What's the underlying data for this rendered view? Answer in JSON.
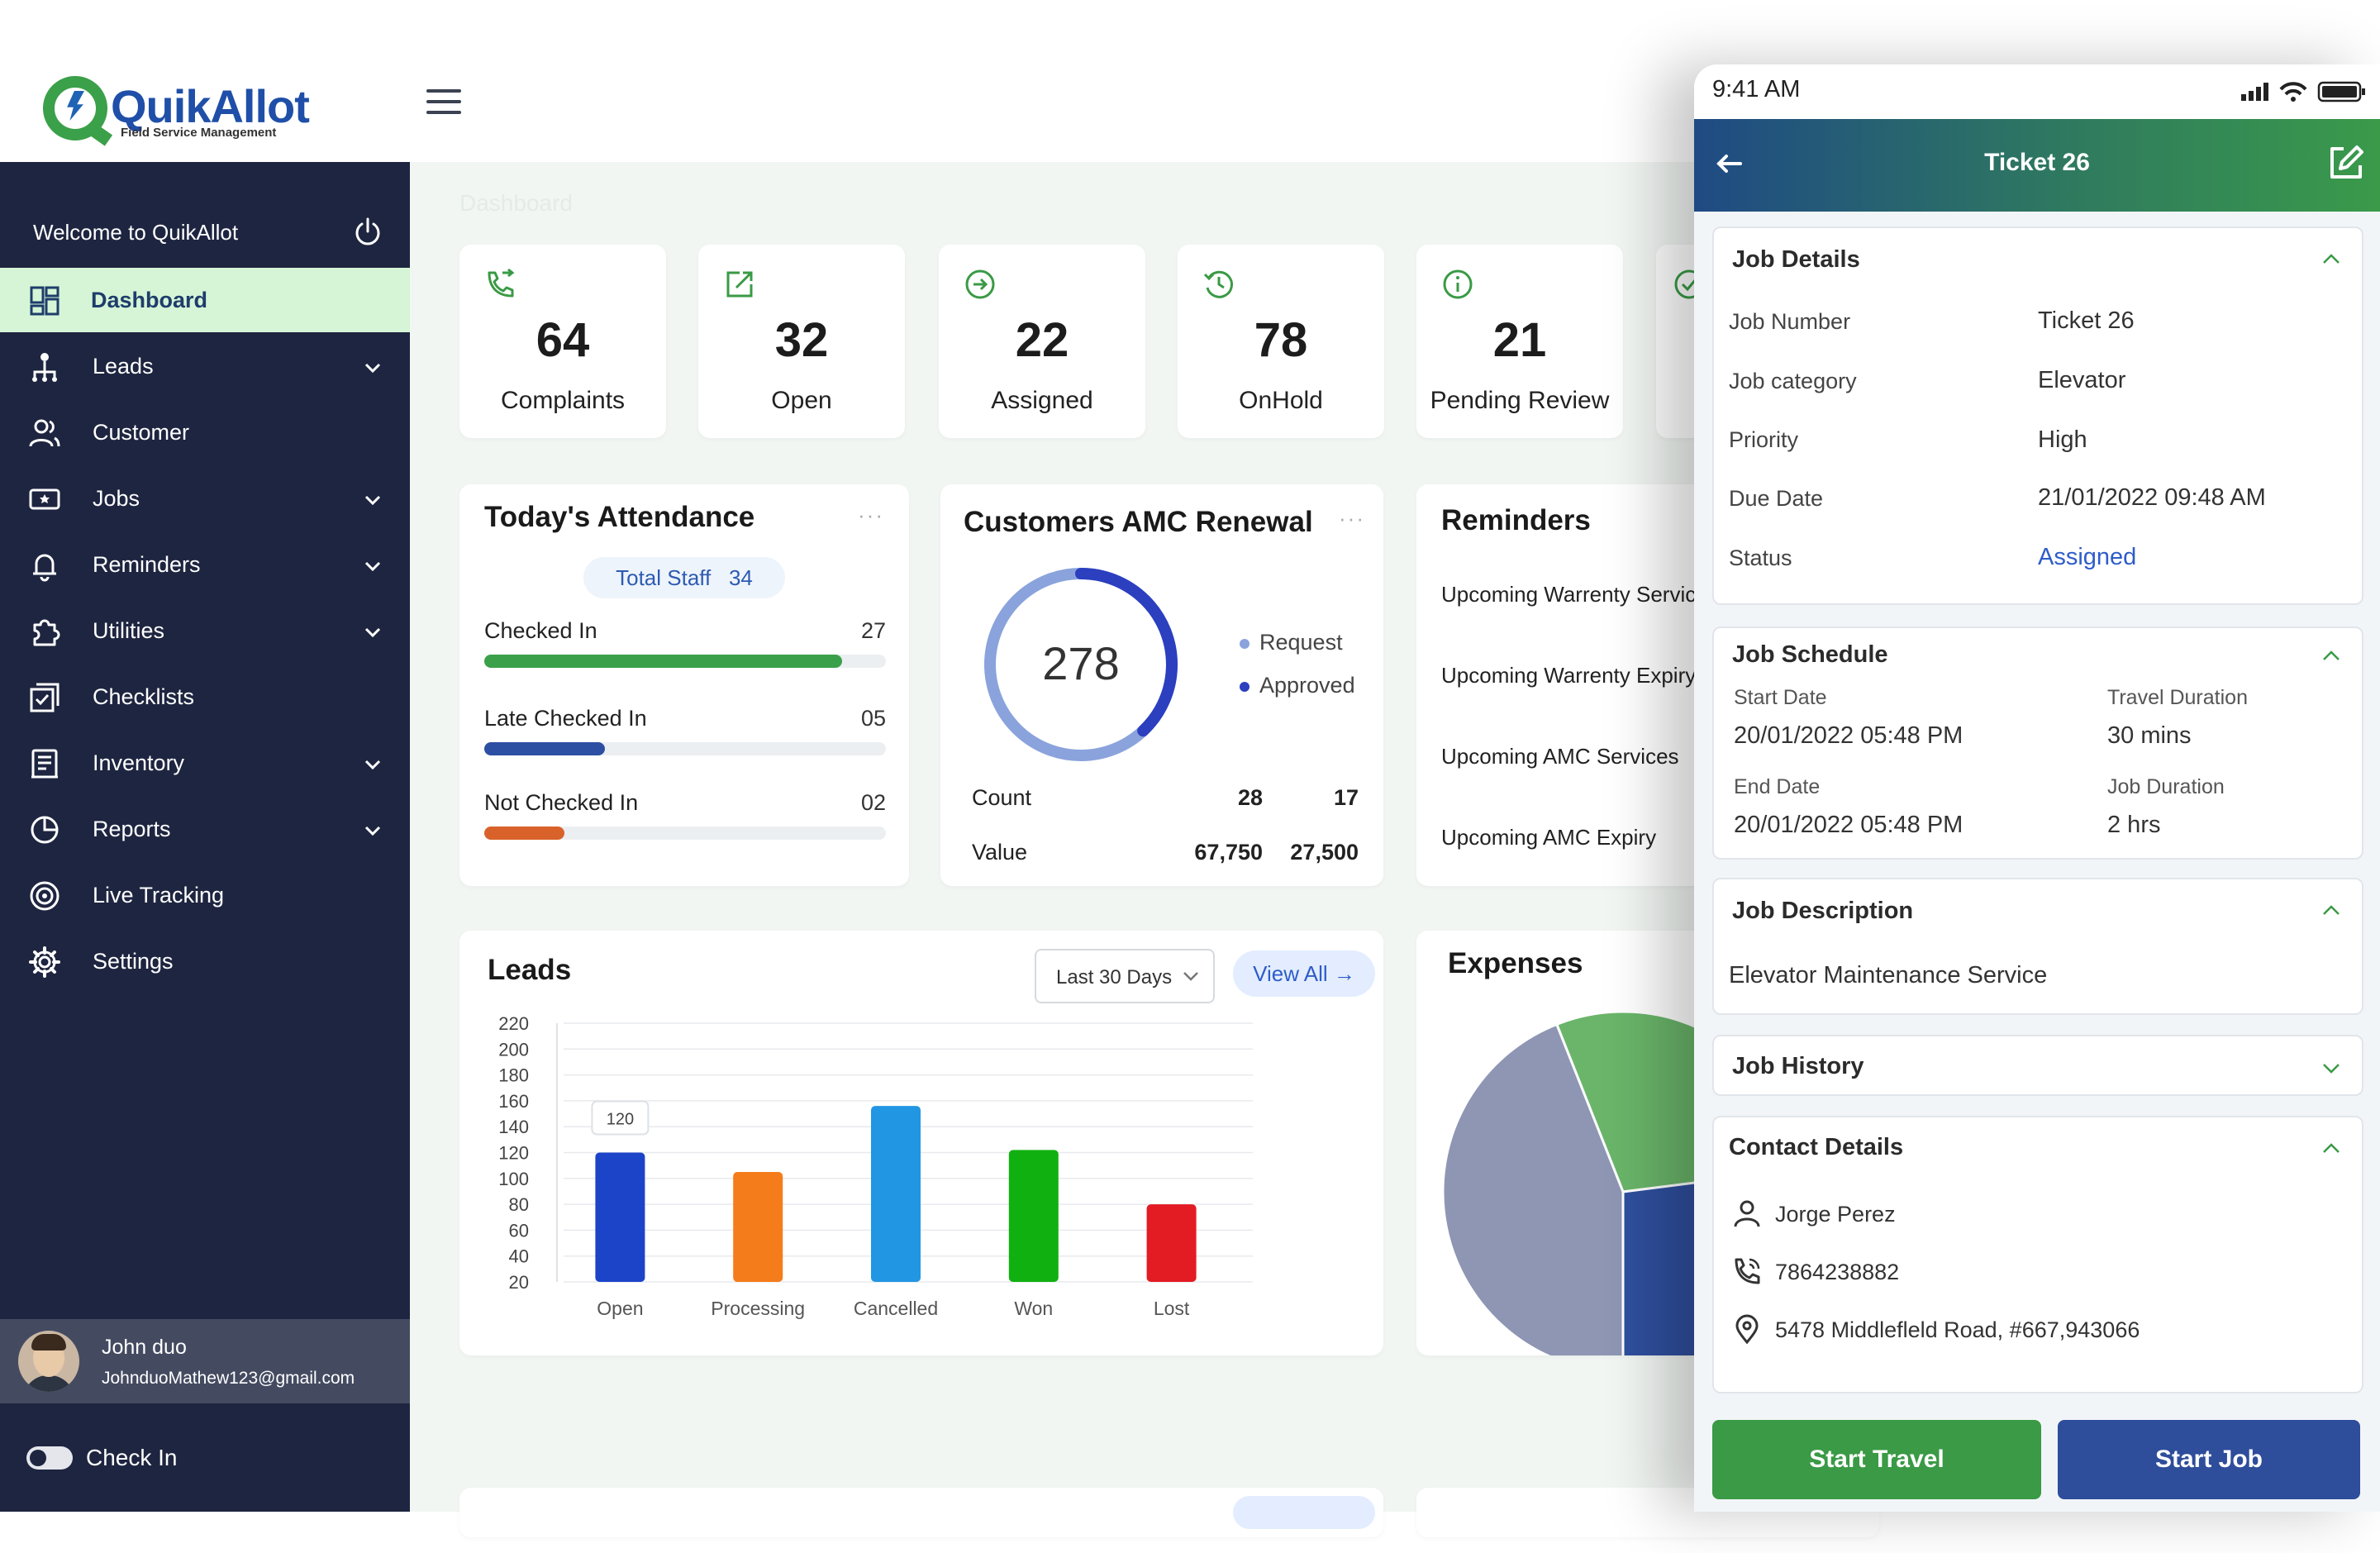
{
  "brand": {
    "name": "QuikAllot",
    "tagline": "Field Service Management"
  },
  "breadcrumb": "Dashboard",
  "sidebar": {
    "welcome": "Welcome to QuikAllot",
    "items": [
      {
        "label": "Dashboard",
        "icon": "dashboard-icon",
        "active": true
      },
      {
        "label": "Leads",
        "icon": "hierarchy-icon",
        "expandable": true
      },
      {
        "label": "Customer",
        "icon": "users-icon"
      },
      {
        "label": "Jobs",
        "icon": "ticket-icon",
        "expandable": true
      },
      {
        "label": "Reminders",
        "icon": "bell-icon",
        "expandable": true
      },
      {
        "label": "Utilities",
        "icon": "puzzle-icon",
        "expandable": true
      },
      {
        "label": "Checklists",
        "icon": "checklist-icon"
      },
      {
        "label": "Inventory",
        "icon": "inventory-icon",
        "expandable": true
      },
      {
        "label": "Reports",
        "icon": "pie-icon",
        "expandable": true
      },
      {
        "label": "Live Tracking",
        "icon": "target-icon"
      },
      {
        "label": "Settings",
        "icon": "gear-icon"
      }
    ],
    "user": {
      "name": "John duo",
      "email": "JohnduoMathew123@gmail.com"
    },
    "check_in_label": "Check In"
  },
  "stats": [
    {
      "value": "64",
      "label": "Complaints",
      "icon": "phone-forward-icon"
    },
    {
      "value": "32",
      "label": "Open",
      "icon": "external-link-icon"
    },
    {
      "value": "22",
      "label": "Assigned",
      "icon": "arrow-circle-icon"
    },
    {
      "value": "78",
      "label": "OnHold",
      "icon": "history-icon"
    },
    {
      "value": "21",
      "label": "Pending Review",
      "icon": "info-icon"
    }
  ],
  "attendance": {
    "title": "Today's Attendance",
    "total_label": "Total Staff",
    "total": "34",
    "rows": [
      {
        "label": "Checked In",
        "value": "27",
        "fraction": 0.89,
        "color": "#3ba04a"
      },
      {
        "label": "Late Checked In",
        "value": "05",
        "fraction": 0.3,
        "color": "#2d4fa3"
      },
      {
        "label": "Not Checked In",
        "value": "02",
        "fraction": 0.2,
        "color": "#d9622b"
      }
    ]
  },
  "amc": {
    "title": "Customers AMC Renewal",
    "total": "278",
    "ring_fraction": 0.38,
    "legend": [
      {
        "label": "Request",
        "color": "#8aa3dc"
      },
      {
        "label": "Approved",
        "color": "#2b3fbf"
      }
    ],
    "count_label": "Count",
    "count_request": "28",
    "count_approved": "17",
    "value_label": "Value",
    "value_request": "67,750",
    "value_approved": "27,500"
  },
  "reminders": {
    "title": "Reminders",
    "items": [
      "Upcoming Warrenty Services",
      "Upcoming Warrenty Expiry",
      "Upcoming AMC Services",
      "Upcoming AMC Expiry"
    ]
  },
  "leads": {
    "title": "Leads",
    "range": "Last 30 Days",
    "view_all": "View All",
    "tooltip": "120"
  },
  "chart_data": {
    "type": "bar",
    "categories": [
      "Open",
      "Processing",
      "Cancelled",
      "Won",
      "Lost"
    ],
    "values": [
      120,
      105,
      156,
      122,
      80
    ],
    "colors": [
      "#1c44c8",
      "#f57c1a",
      "#2196e3",
      "#10b010",
      "#e31b23"
    ],
    "yticks": [
      220,
      200,
      180,
      160,
      140,
      120,
      100,
      80,
      60,
      40,
      20
    ],
    "ylim": [
      20,
      220
    ],
    "grid": true
  },
  "expenses": {
    "title": "Expenses",
    "slices": [
      {
        "fraction": 0.29,
        "color": "#6ab56a"
      },
      {
        "fraction": 0.27,
        "color": "#2f4f9e"
      },
      {
        "fraction": 0.44,
        "color": "#8e96b4"
      }
    ]
  },
  "phone": {
    "time": "9:41 AM",
    "title": "Ticket 26",
    "job_details": {
      "title": "Job Details",
      "rows": [
        {
          "k": "Job Number",
          "v": "Ticket 26"
        },
        {
          "k": "Job category",
          "v": "Elevator"
        },
        {
          "k": "Priority",
          "v": "High"
        },
        {
          "k": "Due Date",
          "v": "21/01/2022 09:48 AM"
        },
        {
          "k": "Status",
          "v": "Assigned"
        }
      ]
    },
    "schedule": {
      "title": "Job Schedule",
      "start_label": "Start Date",
      "start": "20/01/2022 05:48 PM",
      "travel_label": "Travel Duration",
      "travel": "30 mins",
      "end_label": "End Date",
      "end": "20/01/2022 05:48 PM",
      "duration_label": "Job Duration",
      "duration": "2 hrs"
    },
    "description": {
      "title": "Job Description",
      "text": "Elevator Maintenance Service"
    },
    "history": {
      "title": "Job History"
    },
    "contact": {
      "title": "Contact Details",
      "name": "Jorge Perez",
      "phone": "7864238882",
      "address": "5478 Middlefleld Road, #667,943066"
    },
    "start_travel": "Start Travel",
    "start_job": "Start Job",
    "accent_green": "#3a9a45",
    "accent_blue": "#2e4d9b"
  }
}
